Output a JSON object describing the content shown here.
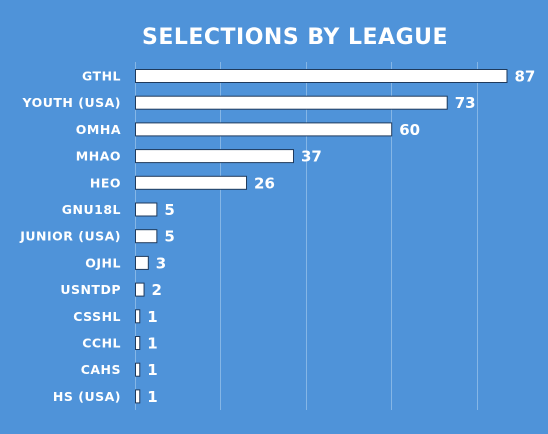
{
  "chart_data": {
    "type": "bar",
    "orientation": "horizontal",
    "title": "SELECTIONS BY LEAGUE",
    "categories": [
      "GTHL",
      "YOUTH (USA)",
      "OMHA",
      "MHAO",
      "HEO",
      "GNU18L",
      "JUNIOR (USA)",
      "OJHL",
      "USNTDP",
      "CSSHL",
      "CCHL",
      "CAHS",
      "HS (USA)"
    ],
    "values": [
      87,
      73,
      60,
      37,
      26,
      5,
      5,
      3,
      2,
      1,
      1,
      1,
      1
    ],
    "xlim": [
      0,
      100
    ],
    "grid": true,
    "data_labels": true,
    "colors": {
      "background": "#4f93d9",
      "bar_fill": "#ffffff",
      "bar_outline": "#1f3a5c",
      "gridline": "#85b6e6",
      "text": "#ffffff"
    }
  }
}
